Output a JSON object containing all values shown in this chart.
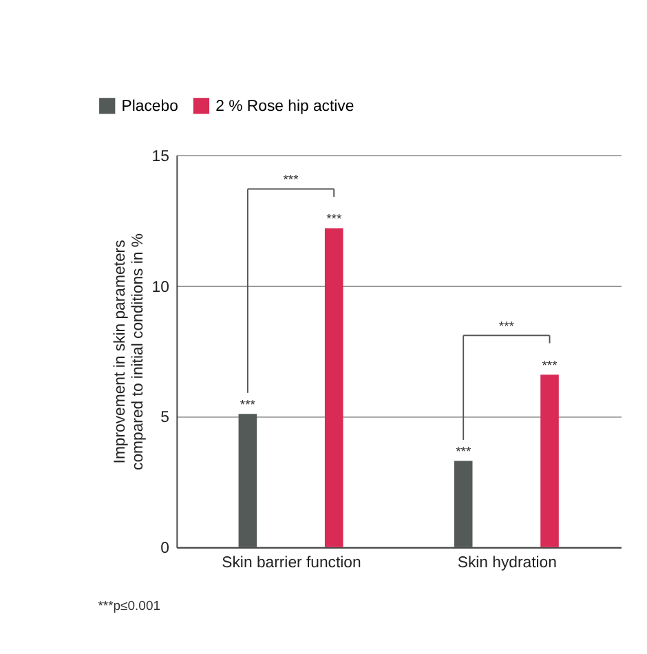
{
  "chart_data": {
    "type": "bar",
    "categories": [
      "Skin barrier function",
      "Skin hydration"
    ],
    "ylabel": "Improvement in skin parameters\ncompared to initial conditions in %",
    "series": [
      {
        "name": "Placebo",
        "color": "#545a57",
        "values": [
          5.1,
          3.3
        ],
        "value_labels": [
          "***",
          "***"
        ]
      },
      {
        "name": "2 % Rose hip active",
        "color": "#d92b55",
        "values": [
          12.2,
          6.6
        ],
        "value_labels": [
          "***",
          "***"
        ]
      }
    ],
    "ylim": [
      0,
      15
    ],
    "yticks": [
      0,
      5,
      10,
      15
    ],
    "grid": "y",
    "legend": "top left",
    "annotations": [
      "***",
      "***",
      "***p≤0.001"
    ]
  }
}
